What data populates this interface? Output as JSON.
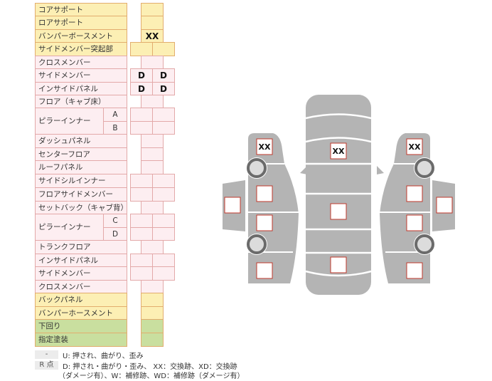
{
  "rows": [
    {
      "label": "コアサポート",
      "color": "y",
      "cells": [
        ""
      ]
    },
    {
      "label": "ロアサポート",
      "color": "y",
      "cells": [
        ""
      ]
    },
    {
      "label": "バンパーボースメント",
      "color": "y",
      "cells": [
        "XX"
      ]
    },
    {
      "label": "サイドメンバー突起部",
      "color": "y",
      "cells": [
        "",
        ""
      ]
    },
    {
      "label": "クロスメンバー",
      "color": "p",
      "cells": [
        ""
      ]
    },
    {
      "label": "サイドメンバー",
      "color": "p",
      "cells": [
        "D",
        "D"
      ]
    },
    {
      "label": "インサイドパネル",
      "color": "p",
      "cells": [
        "D",
        "D"
      ]
    },
    {
      "label": "フロア（キャブ床）",
      "color": "p",
      "cells": [
        ""
      ]
    },
    {
      "label": "ピラーインナー",
      "sub": "A",
      "color": "p",
      "cells": [
        "",
        ""
      ]
    },
    {
      "label": "",
      "sub": "B",
      "color": "p",
      "cells": [
        "",
        ""
      ]
    },
    {
      "label": "ダッシュパネル",
      "color": "p",
      "cells": [
        ""
      ]
    },
    {
      "label": "センターフロア",
      "color": "p",
      "cells": [
        ""
      ]
    },
    {
      "label": "ルーフパネル",
      "color": "p",
      "cells": [
        ""
      ]
    },
    {
      "label": "サイドシルインナー",
      "color": "p",
      "cells": [
        "",
        ""
      ]
    },
    {
      "label": "フロアサイドメンバー",
      "color": "p",
      "cells": [
        "",
        ""
      ]
    },
    {
      "label": "セットバック（キャブ背）",
      "color": "p",
      "cells": [
        ""
      ]
    },
    {
      "label": "ピラーインナー",
      "sub": "C",
      "color": "p",
      "cells": [
        "",
        ""
      ]
    },
    {
      "label": "",
      "sub": "D",
      "color": "p",
      "cells": [
        "",
        ""
      ]
    },
    {
      "label": "トランクフロア",
      "color": "p",
      "cells": [
        ""
      ]
    },
    {
      "label": "インサイドパネル",
      "color": "p",
      "cells": [
        "",
        ""
      ]
    },
    {
      "label": "サイドメンバー",
      "color": "p",
      "cells": [
        "",
        ""
      ]
    },
    {
      "label": "クロスメンバー",
      "color": "p",
      "cells": [
        ""
      ]
    },
    {
      "label": "バックパネル",
      "color": "y",
      "cells": [
        ""
      ]
    },
    {
      "label": "バンパーホースメント",
      "color": "y",
      "cells": [
        ""
      ]
    },
    {
      "label": "下回り",
      "color": "g",
      "cells": [
        ""
      ]
    },
    {
      "label": "指定塗装",
      "color": "g",
      "cells": [
        ""
      ]
    }
  ],
  "diagram": {
    "left": {
      "front": "XX",
      "middle_front": "",
      "door": "",
      "middle_rear": "",
      "rear": ""
    },
    "center": {
      "front": "XX",
      "middle": "",
      "rear": ""
    },
    "right": {
      "front": "XX",
      "middle_front": "",
      "door": "",
      "middle_rear": "",
      "rear": ""
    }
  },
  "legend": {
    "key1": "-",
    "text1": "U: 押され、曲がり、歪み",
    "key2": "R 点",
    "text2": "D: 押され・曲がり・歪み、 XX：交換跡、XD：交換跡",
    "text3": "（ダメージ有）、W：補修跡、WD：補修跡（ダメージ有）"
  },
  "colors": {
    "yellow": "#fcefb4",
    "pink": "#fdeef1",
    "green": "#c9df9f",
    "car": "#b4b4b4",
    "marker_border": "#c0392b"
  }
}
